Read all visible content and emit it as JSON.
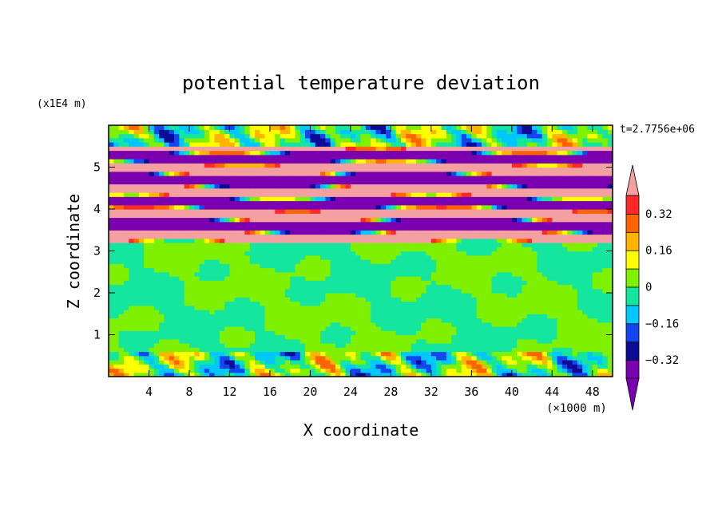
{
  "chart_data": {
    "type": "heatmap",
    "title": "potential temperature deviation",
    "xlabel": "X coordinate",
    "ylabel": "Z coordinate",
    "x_unit_label": "(×1000 m)",
    "y_unit_label": "(x1E4 m)",
    "time_label": "t=2.7756e+06",
    "x_ticks": [
      "4",
      "8",
      "12",
      "16",
      "20",
      "24",
      "28",
      "32",
      "36",
      "40",
      "44",
      "48"
    ],
    "y_ticks": [
      "1",
      "2",
      "3",
      "4",
      "5"
    ],
    "xlim": [
      0,
      50
    ],
    "ylim": [
      0,
      6
    ],
    "colorbar": {
      "labels": [
        "0.32",
        "0.16",
        "0",
        "−0.16",
        "−0.32"
      ],
      "label_values": [
        0.32,
        0.16,
        0,
        -0.16,
        -0.32
      ],
      "levels": [
        -0.4,
        -0.32,
        -0.24,
        -0.16,
        -0.08,
        0,
        0.08,
        0.16,
        0.24,
        0.32,
        0.4
      ],
      "colors": [
        "#7a00b0",
        "#0c0c96",
        "#1446f0",
        "#00c8ff",
        "#14e6a0",
        "#7ef000",
        "#ffff00",
        "#ffb400",
        "#ff6400",
        "#ff2828",
        "#f5a0a0"
      ]
    },
    "field_description_layers": [
      {
        "z_range": [
          0,
          0.6
        ],
        "pattern": "mixed"
      },
      {
        "z_range": [
          0.6,
          3.2
        ],
        "pattern": "near-zero"
      },
      {
        "z_range": [
          3.2,
          5.5
        ],
        "pattern": "alternating-bands"
      },
      {
        "z_range": [
          5.5,
          6
        ],
        "pattern": "mixed"
      }
    ]
  }
}
